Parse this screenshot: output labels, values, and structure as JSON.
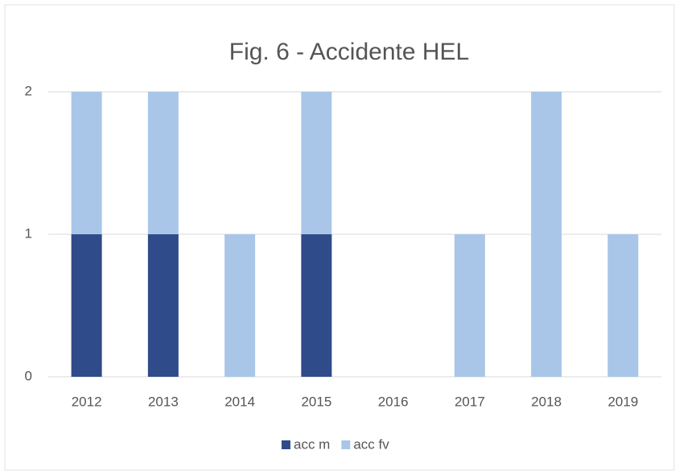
{
  "chart_data": {
    "type": "bar",
    "stacked": true,
    "title": "Fig. 6 - Accidente HEL",
    "categories": [
      "2012",
      "2013",
      "2014",
      "2015",
      "2016",
      "2017",
      "2018",
      "2019"
    ],
    "series": [
      {
        "name": "acc m",
        "color": "#2f4b8a",
        "values": [
          1,
          1,
          0,
          1,
          0,
          0,
          0,
          0
        ]
      },
      {
        "name": "acc fv",
        "color": "#a9c6e8",
        "values": [
          1,
          1,
          1,
          1,
          0,
          1,
          2,
          1
        ]
      }
    ],
    "ylim": [
      0,
      2
    ],
    "yticks": [
      0,
      1,
      2
    ],
    "grid": true,
    "legend": "bottom"
  }
}
